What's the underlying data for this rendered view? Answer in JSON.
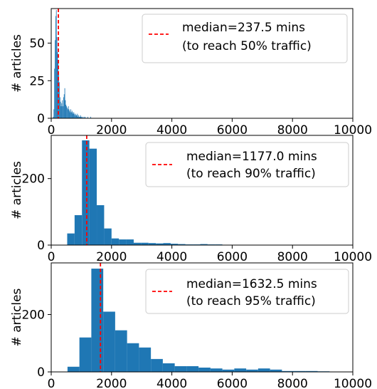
{
  "chart_data": [
    {
      "type": "bar",
      "ylabel": "# articles",
      "xlabel": "",
      "xlim": [
        0,
        10000
      ],
      "ylim": [
        0,
        73
      ],
      "xticks": [
        "0",
        "2000",
        "4000",
        "6000",
        "8000",
        "10000"
      ],
      "xtick_values": [
        0,
        2000,
        4000,
        6000,
        8000,
        10000
      ],
      "yticks": [
        "0",
        "25",
        "50"
      ],
      "ytick_values": [
        0,
        25,
        50
      ],
      "bar_color": "#1f77b4",
      "median": 237.5,
      "median_color": "#ff0000",
      "legend_lines": [
        "median=237.5 mins",
        " (to reach 50% traffic)"
      ],
      "legend_position": "upper right",
      "bin_width": 20,
      "bins": [
        [
          60,
          1
        ],
        [
          80,
          6
        ],
        [
          100,
          33
        ],
        [
          120,
          52
        ],
        [
          140,
          68
        ],
        [
          160,
          72
        ],
        [
          180,
          54
        ],
        [
          200,
          44
        ],
        [
          220,
          38
        ],
        [
          240,
          30
        ],
        [
          260,
          24
        ],
        [
          280,
          14
        ],
        [
          300,
          11
        ],
        [
          320,
          8
        ],
        [
          340,
          10
        ],
        [
          360,
          12
        ],
        [
          380,
          8
        ],
        [
          400,
          14
        ],
        [
          420,
          16
        ],
        [
          440,
          20
        ],
        [
          460,
          12
        ],
        [
          480,
          9
        ],
        [
          500,
          8
        ],
        [
          520,
          7
        ],
        [
          540,
          6
        ],
        [
          560,
          8
        ],
        [
          580,
          6
        ],
        [
          600,
          5
        ],
        [
          620,
          4
        ],
        [
          640,
          6
        ],
        [
          660,
          4
        ],
        [
          680,
          5
        ],
        [
          700,
          4
        ],
        [
          720,
          3
        ],
        [
          740,
          4
        ],
        [
          760,
          3
        ],
        [
          780,
          2
        ],
        [
          800,
          3
        ],
        [
          820,
          2
        ],
        [
          840,
          2
        ],
        [
          860,
          3
        ],
        [
          880,
          1
        ],
        [
          900,
          2
        ],
        [
          920,
          1
        ],
        [
          940,
          1
        ],
        [
          960,
          2
        ],
        [
          980,
          1
        ],
        [
          1000,
          1
        ],
        [
          1040,
          1
        ],
        [
          1080,
          1
        ],
        [
          1120,
          1
        ],
        [
          1200,
          1
        ],
        [
          1300,
          1
        ]
      ]
    },
    {
      "type": "bar",
      "ylabel": "# articles",
      "xlabel": "",
      "xlim": [
        0,
        10000
      ],
      "ylim": [
        0,
        330
      ],
      "xticks": [
        "0",
        "2000",
        "4000",
        "6000",
        "8000",
        "10000"
      ],
      "xtick_values": [
        0,
        2000,
        4000,
        6000,
        8000,
        10000
      ],
      "yticks": [
        "0",
        "200"
      ],
      "ytick_values": [
        0,
        200
      ],
      "bar_color": "#1f77b4",
      "median": 1177.0,
      "median_color": "#ff0000",
      "legend_lines": [
        "median=1177.0 mins",
        " (to reach 90% traffic)"
      ],
      "legend_position": "upper right",
      "bin_width": 245,
      "bins": [
        [
          530,
          35
        ],
        [
          775,
          90
        ],
        [
          1020,
          315
        ],
        [
          1265,
          290
        ],
        [
          1510,
          120
        ],
        [
          1755,
          50
        ],
        [
          2000,
          20
        ],
        [
          2245,
          17
        ],
        [
          2490,
          17
        ],
        [
          2735,
          7
        ],
        [
          2980,
          7
        ],
        [
          3225,
          6
        ],
        [
          3470,
          5
        ],
        [
          3715,
          6
        ],
        [
          3960,
          4
        ],
        [
          4205,
          3
        ],
        [
          4450,
          2
        ],
        [
          4695,
          2
        ],
        [
          4940,
          3
        ],
        [
          5185,
          2
        ],
        [
          5430,
          2
        ]
      ]
    },
    {
      "type": "bar",
      "ylabel": "# articles",
      "xlabel": "",
      "xlim": [
        0,
        10000
      ],
      "ylim": [
        0,
        380
      ],
      "xticks": [
        "0",
        "2000",
        "4000",
        "6000",
        "8000",
        "10000"
      ],
      "xtick_values": [
        0,
        2000,
        4000,
        6000,
        8000,
        10000
      ],
      "yticks": [
        "0",
        "200"
      ],
      "ytick_values": [
        0,
        200
      ],
      "bar_color": "#1f77b4",
      "median": 1632.5,
      "median_color": "#ff0000",
      "legend_lines": [
        "median=1632.5 mins",
        " (to reach 95% traffic)"
      ],
      "legend_position": "upper right",
      "bin_width": 395,
      "bins": [
        [
          540,
          18
        ],
        [
          935,
          120
        ],
        [
          1330,
          360
        ],
        [
          1725,
          210
        ],
        [
          2120,
          145
        ],
        [
          2515,
          100
        ],
        [
          2910,
          85
        ],
        [
          3305,
          45
        ],
        [
          3700,
          30
        ],
        [
          4095,
          20
        ],
        [
          4490,
          20
        ],
        [
          4885,
          15
        ],
        [
          5280,
          12
        ],
        [
          5675,
          8
        ],
        [
          6070,
          12
        ],
        [
          6465,
          8
        ],
        [
          6860,
          12
        ],
        [
          7255,
          8
        ],
        [
          7650,
          3
        ],
        [
          8045,
          3
        ],
        [
          8440,
          3
        ],
        [
          8835,
          2
        ]
      ]
    }
  ]
}
